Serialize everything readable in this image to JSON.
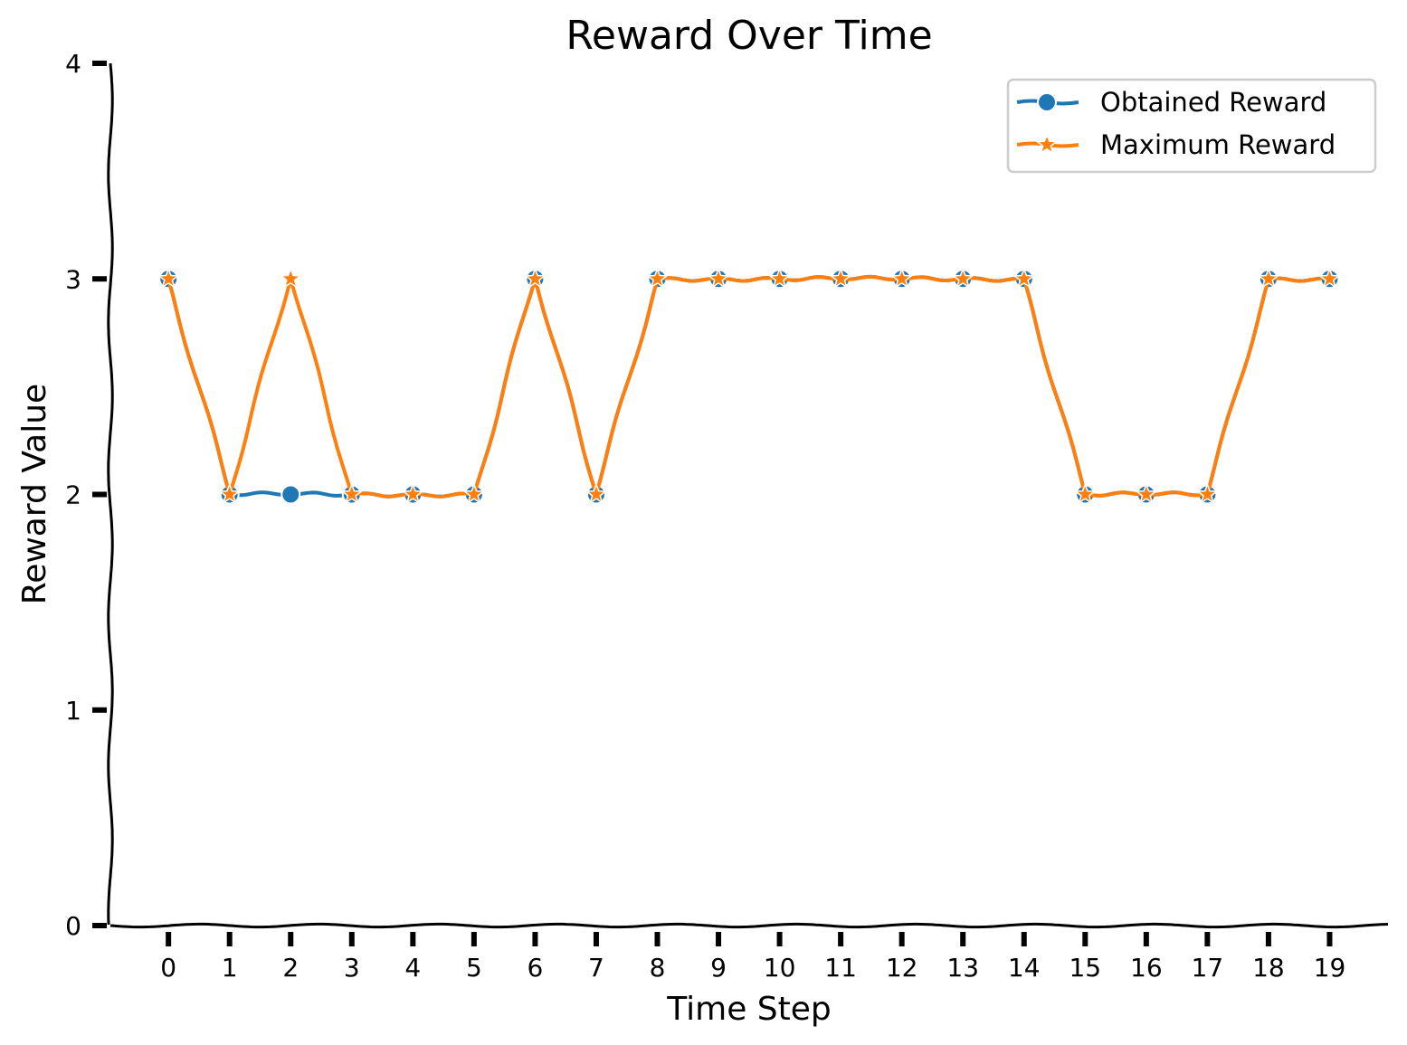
{
  "chart_data": {
    "type": "line",
    "title": "Reward Over Time",
    "xlabel": "Time Step",
    "ylabel": "Reward Value",
    "x": [
      0,
      1,
      2,
      3,
      4,
      5,
      6,
      7,
      8,
      9,
      10,
      11,
      12,
      13,
      14,
      15,
      16,
      17,
      18,
      19
    ],
    "xticks": [
      "0",
      "1",
      "2",
      "3",
      "4",
      "5",
      "6",
      "7",
      "8",
      "9",
      "10",
      "11",
      "12",
      "13",
      "14",
      "15",
      "16",
      "17",
      "18",
      "19"
    ],
    "yticks": [
      "0",
      "1",
      "2",
      "3",
      "4"
    ],
    "ylim": [
      0,
      4
    ],
    "xlim": [
      -0.95,
      20.0
    ],
    "grid": false,
    "legend_position": "top-right",
    "series": [
      {
        "name": "Obtained Reward",
        "color": "#1f77b4",
        "marker": "circle",
        "values": [
          3,
          2,
          2,
          2,
          2,
          2,
          3,
          2,
          3,
          3,
          3,
          3,
          3,
          3,
          3,
          2,
          2,
          2,
          3,
          3
        ]
      },
      {
        "name": "Maximum Reward",
        "color": "#ff7f0e",
        "marker": "star",
        "values": [
          3,
          2,
          3,
          2,
          2,
          2,
          3,
          2,
          3,
          3,
          3,
          3,
          3,
          3,
          3,
          2,
          2,
          2,
          3,
          3
        ]
      }
    ]
  }
}
